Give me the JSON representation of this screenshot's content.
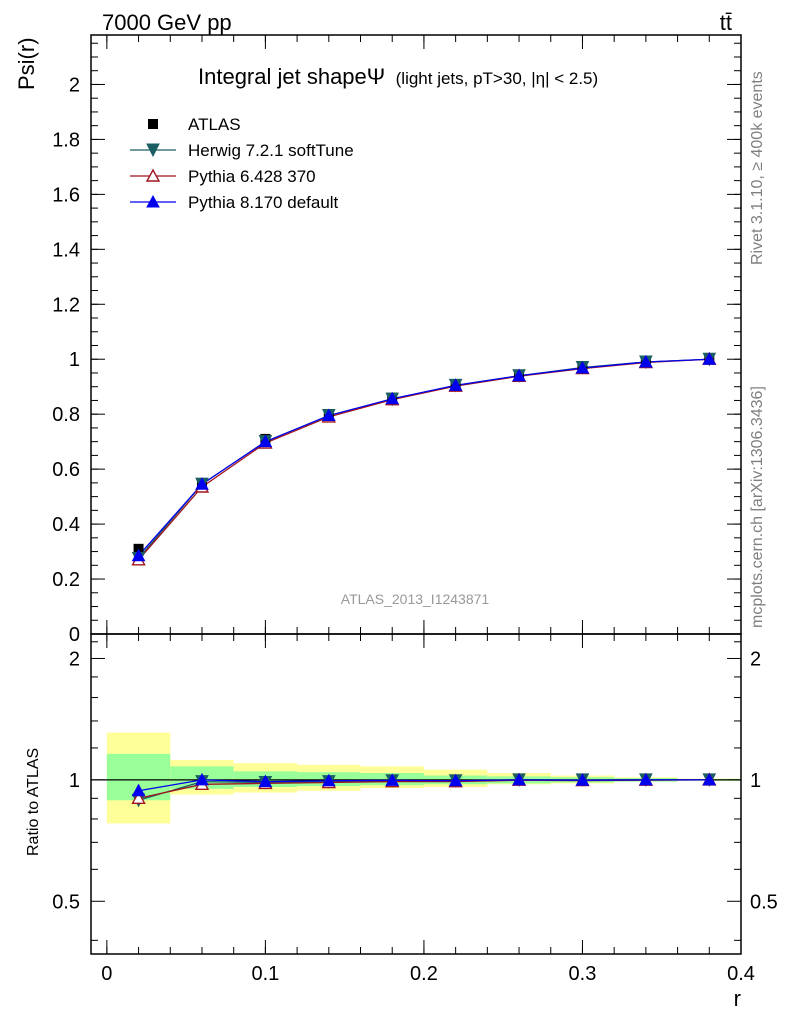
{
  "header": {
    "energy_label": "7000 GeV pp",
    "process_label": "tt̄"
  },
  "side_labels": {
    "rivet": "Rivet 3.1.10, ≥ 400k events",
    "mcplots": "mcplots.cern.ch [arXiv:1306.3436]"
  },
  "chart_data": {
    "type": "line",
    "title": "Integral jet shapeΨ",
    "subtitle": "(light jets, pT>30, |η| < 2.5)",
    "analysis_tag": "ATLAS_2013_I1243871",
    "xlabel": "r",
    "ylabel": "Psi(r)",
    "ratio_ylabel": "Ratio to ATLAS",
    "xlim": [
      -0.01,
      0.4
    ],
    "ylim": [
      0,
      2.18
    ],
    "ratio_ylim": [
      0.37,
      2.3
    ],
    "x_ticks": [
      "0",
      "0.1",
      "0.2",
      "0.3",
      "0.4"
    ],
    "y_ticks": [
      "0",
      "0.2",
      "0.4",
      "0.6",
      "0.8",
      "1",
      "1.2",
      "1.4",
      "1.6",
      "1.8",
      "2"
    ],
    "ratio_y_ticks": [
      "0.5",
      "1",
      "2"
    ],
    "legend_position": "top-left",
    "grid": false,
    "x": [
      0.02,
      0.06,
      0.1,
      0.14,
      0.18,
      0.22,
      0.26,
      0.3,
      0.34,
      0.38
    ],
    "series": [
      {
        "name": "ATLAS",
        "marker": "square",
        "color": "#000000",
        "values": [
          0.31,
          0.55,
          0.71,
          0.8,
          0.86,
          0.91,
          0.94,
          0.97,
          0.99,
          1.0
        ]
      },
      {
        "name": "Herwig 7.2.1 softTune",
        "marker": "triangle-down",
        "color": "#1a5f63",
        "values": [
          0.275,
          0.545,
          0.7,
          0.795,
          0.855,
          0.905,
          0.94,
          0.97,
          0.99,
          1.0
        ]
      },
      {
        "name": "Pythia 6.428 370",
        "marker": "triangle-up-open",
        "color": "#a0141e",
        "values": [
          0.27,
          0.535,
          0.695,
          0.79,
          0.853,
          0.902,
          0.938,
          0.966,
          0.988,
          1.0
        ]
      },
      {
        "name": "Pythia 8.170 default",
        "marker": "triangle-up",
        "color": "#0000ee",
        "values": [
          0.285,
          0.545,
          0.7,
          0.795,
          0.856,
          0.905,
          0.94,
          0.968,
          0.99,
          1.0
        ]
      }
    ],
    "ratio_series": [
      {
        "name": "Herwig 7.2.1 softTune",
        "values": [
          0.89,
          0.99,
          0.985,
          0.99,
          0.995,
          0.995,
          1.0,
          1.0,
          1.0,
          1.0
        ]
      },
      {
        "name": "Pythia 6.428 370",
        "values": [
          0.9,
          0.975,
          0.98,
          0.985,
          0.99,
          0.99,
          0.998,
          0.996,
          0.998,
          1.0
        ]
      },
      {
        "name": "Pythia 8.170 default",
        "values": [
          0.94,
          1.0,
          0.99,
          0.995,
          0.997,
          0.995,
          1.0,
          0.998,
          1.0,
          1.0
        ]
      }
    ],
    "uncertainty_bands": {
      "bins": [
        [
          0.0,
          0.04
        ],
        [
          0.04,
          0.08
        ],
        [
          0.08,
          0.12
        ],
        [
          0.12,
          0.16
        ],
        [
          0.16,
          0.2
        ],
        [
          0.2,
          0.24
        ],
        [
          0.24,
          0.28
        ],
        [
          0.28,
          0.32
        ],
        [
          0.32,
          0.36
        ],
        [
          0.36,
          0.4
        ]
      ],
      "inner": [
        [
          0.89,
          1.16
        ],
        [
          0.95,
          1.08
        ],
        [
          0.96,
          1.05
        ],
        [
          0.965,
          1.045
        ],
        [
          0.97,
          1.04
        ],
        [
          0.975,
          1.025
        ],
        [
          0.98,
          1.02
        ],
        [
          0.985,
          1.015
        ],
        [
          0.99,
          1.01
        ],
        [
          0.995,
          1.005
        ]
      ],
      "outer": [
        [
          0.78,
          1.31
        ],
        [
          0.92,
          1.12
        ],
        [
          0.93,
          1.1
        ],
        [
          0.94,
          1.09
        ],
        [
          0.955,
          1.08
        ],
        [
          0.96,
          1.06
        ],
        [
          0.975,
          1.04
        ],
        [
          0.98,
          1.025
        ],
        [
          0.99,
          1.015
        ],
        [
          0.995,
          1.007
        ]
      ],
      "inner_color": "#99ff99",
      "outer_color": "#ffff99"
    }
  }
}
